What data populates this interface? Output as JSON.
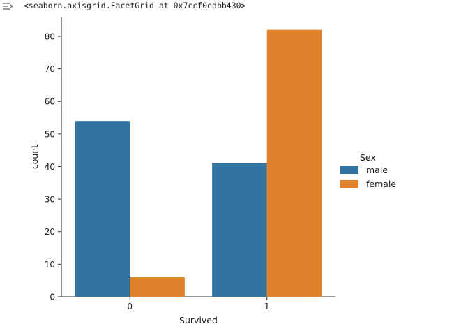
{
  "output": {
    "repr_text": "<seaborn.axisgrid.FacetGrid at 0x7ccf0edbb430>",
    "icon": "output-arrow-icon"
  },
  "chart_data": {
    "type": "bar",
    "categories": [
      "0",
      "1"
    ],
    "series": [
      {
        "name": "male",
        "values": [
          54,
          41
        ],
        "color": "#3274a1"
      },
      {
        "name": "female",
        "values": [
          6,
          82
        ],
        "color": "#e1812c"
      }
    ],
    "title": "",
    "xlabel": "Survived",
    "ylabel": "count",
    "ylim": [
      0,
      86
    ],
    "yticks": [
      0,
      10,
      20,
      30,
      40,
      50,
      60,
      70,
      80
    ],
    "grid": false,
    "legend": {
      "title": "Sex",
      "placement": "right"
    }
  }
}
